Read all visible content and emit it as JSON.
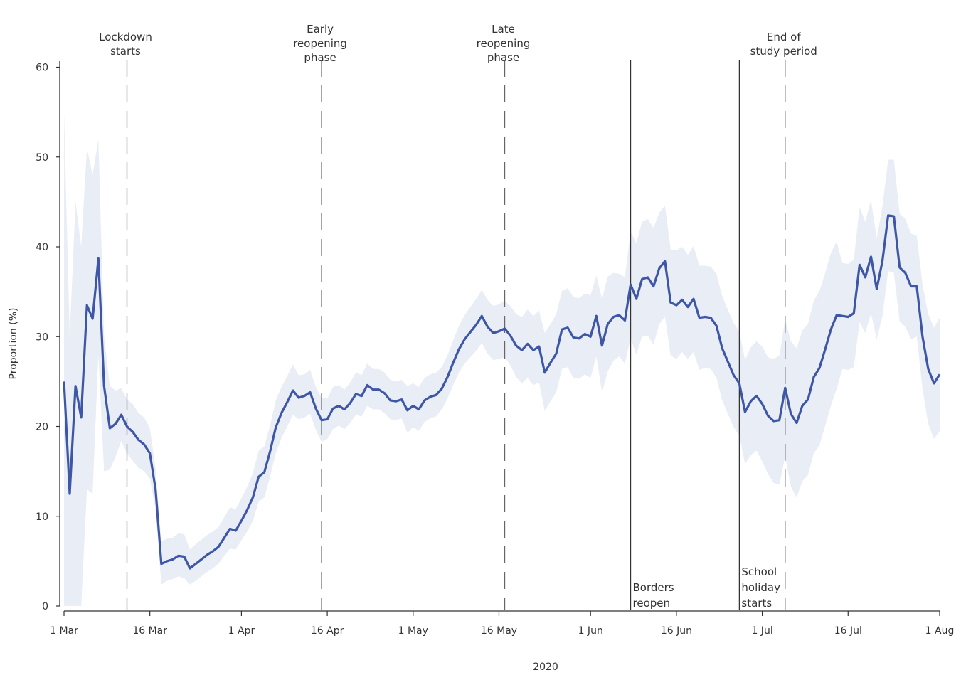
{
  "chart_data": {
    "type": "line",
    "xlabel": "2020",
    "ylabel": "Proportion (%)",
    "ylim": [
      0,
      60
    ],
    "xlim": [
      "2020-03-01",
      "2020-08-01"
    ],
    "grid": false,
    "legend": "none",
    "colors": {
      "line": "#3d56a6",
      "band": "#e9edf5",
      "rule": "#333333",
      "dashed": "#666666"
    },
    "x_ticks": [
      {
        "date": "2020-03-01",
        "label": "1 Mar"
      },
      {
        "date": "2020-03-16",
        "label": "16 Mar"
      },
      {
        "date": "2020-04-01",
        "label": "1 Apr"
      },
      {
        "date": "2020-04-16",
        "label": "16 Apr"
      },
      {
        "date": "2020-05-01",
        "label": "1 May"
      },
      {
        "date": "2020-05-16",
        "label": "16 May"
      },
      {
        "date": "2020-06-01",
        "label": "1 Jun"
      },
      {
        "date": "2020-06-16",
        "label": "16 Jun"
      },
      {
        "date": "2020-07-01",
        "label": "1 Jul"
      },
      {
        "date": "2020-07-16",
        "label": "16 Jul"
      },
      {
        "date": "2020-08-01",
        "label": "1 Aug"
      }
    ],
    "y_ticks": [
      0,
      10,
      20,
      30,
      40,
      50,
      60
    ],
    "events": [
      {
        "date": "2020-03-12",
        "style": "dashed",
        "position": "top",
        "lines": [
          "Lockdown",
          "starts"
        ]
      },
      {
        "date": "2020-04-15",
        "style": "dashed",
        "position": "top",
        "lines": [
          "Early",
          "reopening",
          "phase"
        ]
      },
      {
        "date": "2020-05-17",
        "style": "dashed",
        "position": "top",
        "lines": [
          "Late",
          "reopening",
          "phase"
        ]
      },
      {
        "date": "2020-06-08",
        "style": "solid",
        "position": "bottom",
        "lines": [
          "Borders",
          "reopen"
        ]
      },
      {
        "date": "2020-06-27",
        "style": "solid",
        "position": "bottom",
        "lines": [
          "School",
          "holiday",
          "starts"
        ]
      },
      {
        "date": "2020-07-05",
        "style": "dashed",
        "position": "top",
        "lines": [
          "End of",
          "study period"
        ]
      }
    ],
    "series": [
      {
        "x": [
          "2020-03-01",
          "2020-03-02",
          "2020-03-03",
          "2020-03-04",
          "2020-03-05",
          "2020-03-06",
          "2020-03-07",
          "2020-03-08",
          "2020-03-09",
          "2020-03-10",
          "2020-03-11",
          "2020-03-12",
          "2020-03-13",
          "2020-03-14",
          "2020-03-15",
          "2020-03-16",
          "2020-03-17",
          "2020-03-18",
          "2020-03-19",
          "2020-03-20",
          "2020-03-21",
          "2020-03-22",
          "2020-03-23",
          "2020-03-24",
          "2020-03-25",
          "2020-03-26",
          "2020-03-27",
          "2020-03-28",
          "2020-03-29",
          "2020-03-30",
          "2020-03-31",
          "2020-04-01",
          "2020-04-02",
          "2020-04-03",
          "2020-04-04",
          "2020-04-05",
          "2020-04-06",
          "2020-04-07",
          "2020-04-08",
          "2020-04-09",
          "2020-04-10",
          "2020-04-11",
          "2020-04-12",
          "2020-04-13",
          "2020-04-14",
          "2020-04-15",
          "2020-04-16",
          "2020-04-17",
          "2020-04-18",
          "2020-04-19",
          "2020-04-20",
          "2020-04-21",
          "2020-04-22",
          "2020-04-23",
          "2020-04-24",
          "2020-04-25",
          "2020-04-26",
          "2020-04-27",
          "2020-04-28",
          "2020-04-29",
          "2020-04-30",
          "2020-05-01",
          "2020-05-02",
          "2020-05-03",
          "2020-05-04",
          "2020-05-05",
          "2020-05-06",
          "2020-05-07",
          "2020-05-08",
          "2020-05-09",
          "2020-05-10",
          "2020-05-11",
          "2020-05-12",
          "2020-05-13",
          "2020-05-14",
          "2020-05-15",
          "2020-05-16",
          "2020-05-17",
          "2020-05-18",
          "2020-05-19",
          "2020-05-20",
          "2020-05-21",
          "2020-05-22",
          "2020-05-23",
          "2020-05-24",
          "2020-05-25",
          "2020-05-26",
          "2020-05-27",
          "2020-05-28",
          "2020-05-29",
          "2020-05-30",
          "2020-05-31",
          "2020-06-01",
          "2020-06-02",
          "2020-06-03",
          "2020-06-04",
          "2020-06-05",
          "2020-06-06",
          "2020-06-07",
          "2020-06-08",
          "2020-06-09",
          "2020-06-10",
          "2020-06-11",
          "2020-06-12",
          "2020-06-13",
          "2020-06-14",
          "2020-06-15",
          "2020-06-16",
          "2020-06-17",
          "2020-06-18",
          "2020-06-19",
          "2020-06-20",
          "2020-06-21",
          "2020-06-22",
          "2020-06-23",
          "2020-06-24",
          "2020-06-25",
          "2020-06-26",
          "2020-06-27",
          "2020-06-28",
          "2020-06-29",
          "2020-06-30",
          "2020-07-01",
          "2020-07-02",
          "2020-07-03",
          "2020-07-04",
          "2020-07-05",
          "2020-07-06",
          "2020-07-07",
          "2020-07-08",
          "2020-07-09",
          "2020-07-10",
          "2020-07-11",
          "2020-07-12",
          "2020-07-13",
          "2020-07-14",
          "2020-07-15",
          "2020-07-16",
          "2020-07-17",
          "2020-07-18",
          "2020-07-19",
          "2020-07-20",
          "2020-07-21",
          "2020-07-22",
          "2020-07-23",
          "2020-07-24",
          "2020-07-25",
          "2020-07-26",
          "2020-07-27",
          "2020-07-28",
          "2020-07-29",
          "2020-07-30",
          "2020-07-31",
          "2020-08-01"
        ],
        "values": [
          25,
          12.5,
          24.5,
          21,
          33.5,
          32,
          38.7,
          24.5,
          19.8,
          20.3,
          21.3,
          20,
          19.4,
          18.5,
          18,
          17,
          13,
          4.7,
          5,
          5.2,
          5.6,
          5.5,
          4.2,
          4.7,
          5.2,
          5.7,
          6.1,
          6.6,
          7.6,
          8.6,
          8.4,
          9.5,
          10.7,
          12.1,
          14.4,
          14.9,
          17.2,
          19.9,
          21.5,
          22.7,
          24,
          23.2,
          23.4,
          23.8,
          22,
          20.7,
          20.8,
          22,
          22.3,
          21.9,
          22.6,
          23.6,
          23.4,
          24.6,
          24.1,
          24.1,
          23.7,
          22.9,
          22.8,
          23,
          21.8,
          22.3,
          21.9,
          22.9,
          23.3,
          23.5,
          24.2,
          25.5,
          27.1,
          28.6,
          29.7,
          30.5,
          31.3,
          32.3,
          31.1,
          30.4,
          30.6,
          30.9,
          30.1,
          29,
          28.5,
          29.2,
          28.5,
          28.9,
          26,
          27.1,
          28.1,
          30.8,
          31,
          29.9,
          29.8,
          30.3,
          30,
          32.3,
          29,
          31.4,
          32.2,
          32.4,
          31.8,
          35.8,
          34.2,
          36.4,
          36.6,
          35.6,
          37.6,
          38.4,
          33.8,
          33.5,
          34.1,
          33.3,
          34.2,
          32.1,
          32.2,
          32.1,
          31.2,
          28.7,
          27.2,
          25.7,
          24.8,
          21.6,
          22.8,
          23.4,
          22.5,
          21.2,
          20.6,
          20.7,
          24.3,
          21.4,
          20.4,
          22.3,
          23,
          25.5,
          26.5,
          28.6,
          30.8,
          32.4,
          32.3,
          32.2,
          32.6,
          38,
          36.6,
          38.9,
          35.3,
          38.4,
          43.5,
          43.4,
          37.7,
          37.1,
          35.6,
          35.6,
          30,
          26.4,
          24.8,
          25.8
        ],
        "lower": [
          0,
          0,
          0,
          0,
          13,
          12.5,
          28,
          15,
          15.2,
          16.6,
          18.4,
          17,
          16.2,
          15.4,
          15,
          14.2,
          10.7,
          2.4,
          2.8,
          3,
          3.3,
          3.1,
          2.4,
          2.8,
          3.3,
          3.8,
          4.2,
          4.7,
          5.6,
          6.4,
          6.3,
          7.3,
          8.3,
          9.5,
          11.6,
          12.1,
          14.4,
          17,
          18.7,
          20,
          21.3,
          20.8,
          21,
          21.4,
          19.6,
          18.3,
          18.6,
          19.7,
          20.1,
          19.7,
          20.4,
          21.3,
          21.1,
          22.3,
          21.9,
          21.9,
          21.5,
          20.8,
          20.7,
          20.9,
          19.3,
          19.9,
          19.5,
          20.5,
          20.9,
          21.1,
          21.9,
          23.1,
          24.6,
          26,
          27,
          27.7,
          28.4,
          29.3,
          28.1,
          27.4,
          27.5,
          27.7,
          26.8,
          25.5,
          24.8,
          25.4,
          24.6,
          24.9,
          21.7,
          22.8,
          23.8,
          26.4,
          26.6,
          25.4,
          25.3,
          25.8,
          25.4,
          27.8,
          23.8,
          26.1,
          27.3,
          27.8,
          27,
          29.8,
          28,
          30,
          30.1,
          29.1,
          31.4,
          32.2,
          27.9,
          27.5,
          28.3,
          27.5,
          28.3,
          26.3,
          26.5,
          26.4,
          25.4,
          22.9,
          21.4,
          19.9,
          19,
          15.8,
          16.8,
          17.3,
          16.1,
          14.7,
          13.7,
          13.5,
          16.7,
          13.3,
          12.1,
          13.9,
          14.6,
          17,
          17.9,
          20.1,
          22.3,
          24.2,
          26.4,
          26.3,
          26.6,
          31.6,
          30.4,
          32.6,
          29.7,
          32.3,
          37.3,
          37.1,
          31.7,
          31.1,
          29.7,
          30,
          24.2,
          20.3,
          18.6,
          19.5
        ],
        "upper": [
          55,
          30,
          45,
          40,
          51,
          48,
          52,
          30,
          24.5,
          24,
          24.3,
          23,
          22.5,
          21.5,
          21,
          19.8,
          15.3,
          7.2,
          7.5,
          7.6,
          8.1,
          8,
          6.3,
          6.9,
          7.4,
          7.9,
          8.3,
          8.8,
          9.9,
          11,
          10.8,
          12,
          13.3,
          14.8,
          17.3,
          17.8,
          20.1,
          22.9,
          24.4,
          25.6,
          26.9,
          25.7,
          25.8,
          26.3,
          24.4,
          23.2,
          23.1,
          24.4,
          24.6,
          24.1,
          24.9,
          26,
          25.7,
          27,
          26.4,
          26.4,
          26,
          25.2,
          25,
          25.2,
          24.5,
          24.8,
          24.4,
          25.4,
          25.8,
          26,
          26.6,
          27.9,
          29.6,
          31.2,
          32.4,
          33.3,
          34.2,
          35.2,
          34.1,
          33.4,
          33.6,
          34,
          33.4,
          32.5,
          32.2,
          33,
          32.3,
          32.9,
          30.4,
          31.4,
          32.5,
          35.1,
          35.4,
          34.4,
          34.3,
          34.8,
          34.6,
          36.8,
          34.2,
          36.7,
          37.1,
          37,
          36.6,
          41.7,
          40.4,
          42.8,
          43.1,
          42.1,
          43.8,
          44.6,
          39.7,
          39.6,
          40,
          39.1,
          40.1,
          37.9,
          37.9,
          37.8,
          37,
          34.5,
          33,
          31.5,
          30.6,
          27.4,
          28.8,
          29.5,
          28.9,
          27.7,
          27.5,
          27.9,
          31.9,
          29.5,
          28.7,
          30.7,
          31.4,
          34,
          35.1,
          37.1,
          39.3,
          40.6,
          38.2,
          38.1,
          38.6,
          44.4,
          42.8,
          45.2,
          40.9,
          44.5,
          49.7,
          49.7,
          43.7,
          43.1,
          41.5,
          41.2,
          35.8,
          32.5,
          31,
          32.1
        ]
      }
    ]
  }
}
